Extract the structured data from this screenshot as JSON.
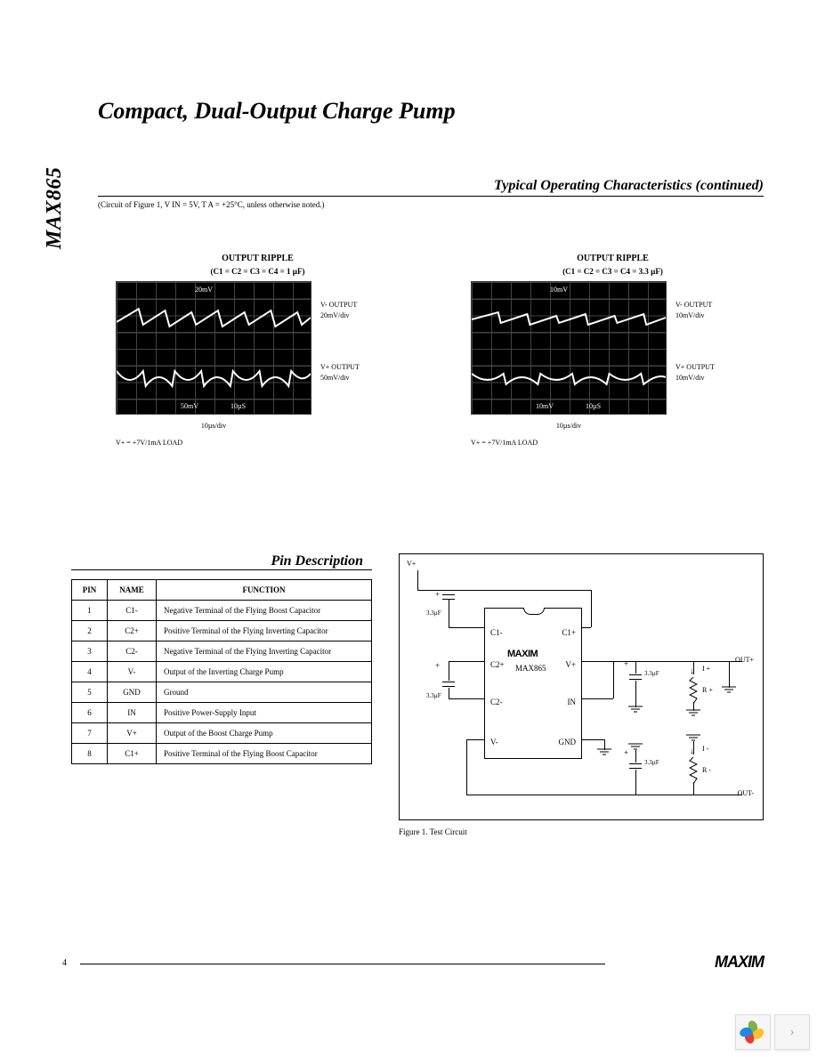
{
  "part_number": "MAX865",
  "title": "Compact, Dual-Output Charge Pump",
  "section_typical": "Typical Operating Characteristics (continued)",
  "circuit_note": "(Circuit of Figure 1, V      IN = 5V, T   A = +25°C, unless otherwise noted.)",
  "scope1": {
    "title": "OUTPUT RIPPLE",
    "subtitle": "(C1 = C2 = C3 = C4 = 1   µF)",
    "top_label": "V- OUTPUT",
    "top_scale": "20mV/div",
    "bot_label": "V+ OUTPUT",
    "bot_scale": "50mV/div",
    "inner_top": "20mV",
    "inner_bot_l": "50mV",
    "inner_bot_r": "10µS",
    "xaxis": "10µs/div",
    "load": "V+ = +7V/1mA LOAD"
  },
  "scope2": {
    "title": "OUTPUT RIPPLE",
    "subtitle": "(C1 = C2 = C3 = C4 = 3.3   µF)",
    "top_label": "V- OUTPUT",
    "top_scale": "10mV/div",
    "bot_label": "V+ OUTPUT",
    "bot_scale": "10mV/div",
    "inner_top": "10mV",
    "inner_bot_l": "10mV",
    "inner_bot_r": "10µS",
    "xaxis": "10µs/div",
    "load": "V+ = +7V/1mA LOAD"
  },
  "pin_section_title": "Pin Description",
  "pin_headers": {
    "pin": "PIN",
    "name": "NAME",
    "func": "FUNCTION"
  },
  "pins": [
    {
      "n": "1",
      "name": "C1-",
      "func": "Negative Terminal of the Flying Boost Capacitor"
    },
    {
      "n": "2",
      "name": "C2+",
      "func": "Positive Terminal of the Flying Inverting Capacitor"
    },
    {
      "n": "3",
      "name": "C2-",
      "func": "Negative Terminal of the Flying Inverting Capacitor"
    },
    {
      "n": "4",
      "name": "V-",
      "func": "Output of the Inverting Charge Pump"
    },
    {
      "n": "5",
      "name": "GND",
      "func": "Ground"
    },
    {
      "n": "6",
      "name": "IN",
      "func": "Positive Power-Supply Input"
    },
    {
      "n": "7",
      "name": "V+",
      "func": "Output of the Boost Charge Pump"
    },
    {
      "n": "8",
      "name": "C1+",
      "func": "Positive Terminal of the Flying Boost Capacitor"
    }
  ],
  "circuit": {
    "vin_label": "V+",
    "chip_brand": "MAXIM",
    "chip_name": "MAX865",
    "pin_c1m": "C1-",
    "pin_c1p": "C1+",
    "pin_c2p": "C2+",
    "pin_vp": "V+",
    "pin_c2m": "C2-",
    "pin_in": "IN",
    "pin_vm": "V-",
    "pin_gnd": "GND",
    "cap_val": "3.3µF",
    "out_p": "OUT+",
    "out_m": "OUT-",
    "i_p": "I +",
    "i_m": "I -",
    "r_p": "R +",
    "r_m": "R -",
    "caption": "Figure 1.  Test Circuit"
  },
  "page_num": "4",
  "brand": "MAXIM"
}
